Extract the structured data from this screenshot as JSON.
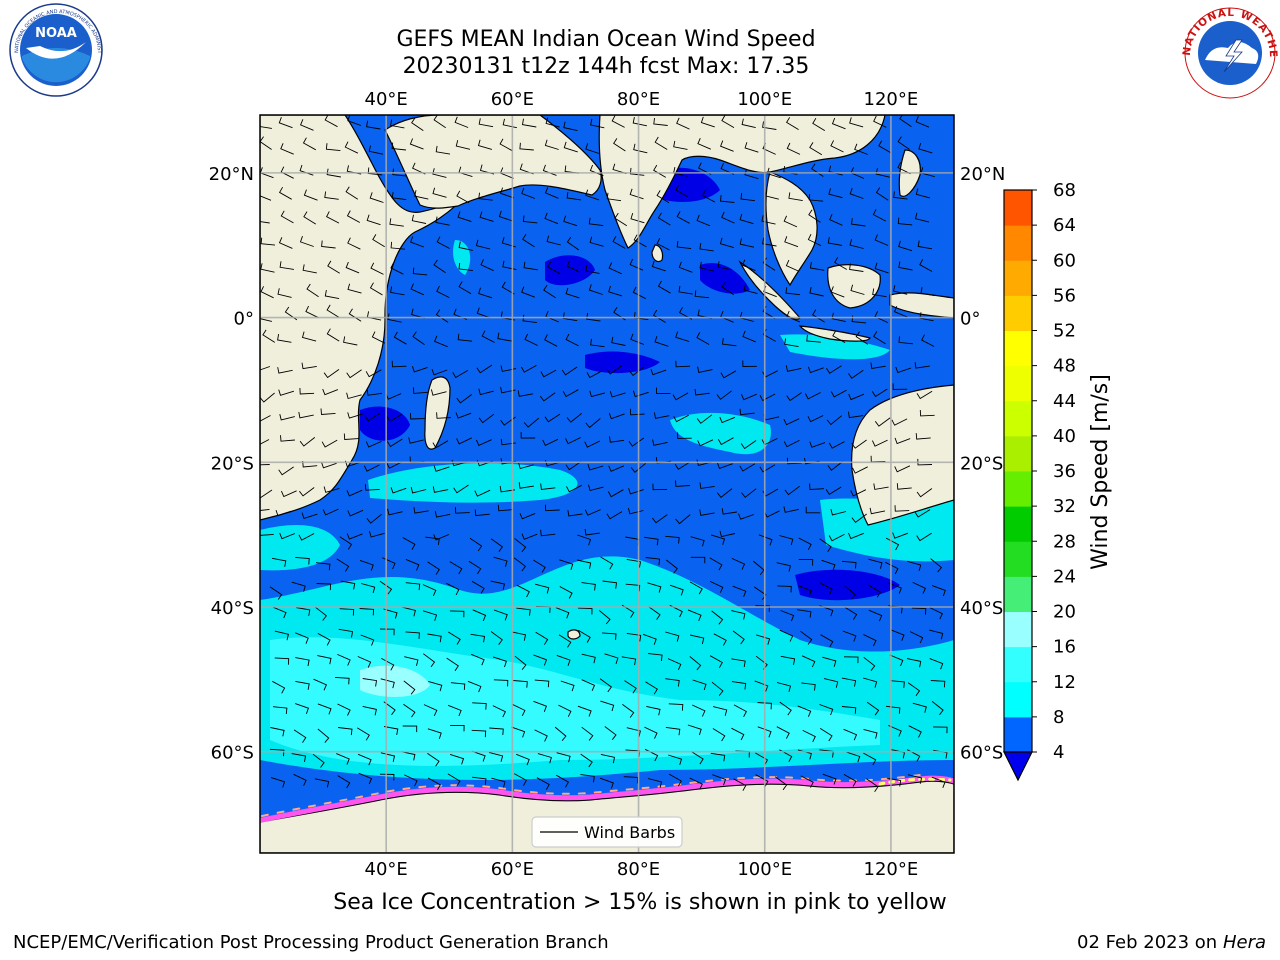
{
  "header": {
    "title_line1": "GEFS MEAN Indian Ocean Wind Speed",
    "title_line2": "20230131 t12z 144h fcst   Max: 17.35"
  },
  "logos": {
    "left": {
      "text": "NOAA",
      "ring_text": "NATIONAL OCEANIC AND ATMOSPHERIC ADMINISTRATION · U.S. DEPARTMENT OF COMMERCE",
      "icon": "noaa-logo-icon"
    },
    "right": {
      "ring_text": "NATIONAL WEATHER SERVICE",
      "icon": "nws-logo-icon"
    }
  },
  "map": {
    "lon_range": [
      20,
      130
    ],
    "lat_range": [
      -74,
      28
    ],
    "lon_ticks": [
      40,
      60,
      80,
      100,
      120
    ],
    "lon_tick_labels": [
      "40°E",
      "60°E",
      "80°E",
      "100°E",
      "120°E"
    ],
    "lat_ticks": [
      20,
      0,
      -20,
      -40,
      -60
    ],
    "lat_tick_labels": [
      "20°N",
      "0°",
      "20°S",
      "40°S",
      "60°S"
    ],
    "legend_label": "Wind Barbs",
    "legend_position": "bottom-center",
    "land_color": "#efefdc",
    "grid": true
  },
  "colorbar": {
    "label": "Wind Speed [m/s]",
    "levels": [
      4,
      8,
      12,
      16,
      20,
      24,
      28,
      32,
      36,
      40,
      44,
      48,
      52,
      56,
      60,
      64,
      68
    ],
    "tick_labels": [
      "4",
      "8",
      "12",
      "16",
      "20",
      "24",
      "28",
      "32",
      "36",
      "40",
      "44",
      "48",
      "52",
      "56",
      "60",
      "64",
      "68"
    ],
    "colors": [
      "#0066ff",
      "#00ffff",
      "#33ffff",
      "#99ffff",
      "#44ee77",
      "#22dd22",
      "#00cc00",
      "#66ee00",
      "#aaee00",
      "#ccff00",
      "#eeff00",
      "#ffff00",
      "#ffcc00",
      "#ffaa00",
      "#ff8800",
      "#ff5500",
      "#ff0000"
    ],
    "under_color": "#0000ee",
    "extend": "min"
  },
  "caption": "Sea Ice Concentration > 15% is shown in pink to yellow",
  "footer": {
    "left": "NCEP/EMC/Verification Post Processing Product Generation Branch",
    "right_date": "02 Feb 2023 on",
    "right_host": "Hera"
  }
}
